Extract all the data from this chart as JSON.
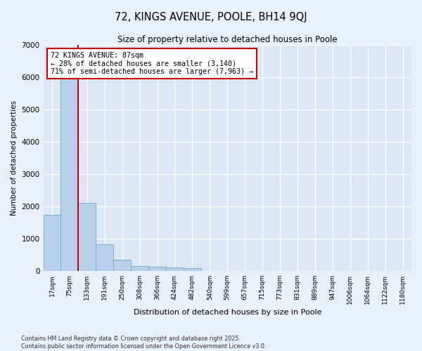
{
  "title_line1": "72, KINGS AVENUE, POOLE, BH14 9QJ",
  "title_line2": "Size of property relative to detached houses in Poole",
  "xlabel": "Distribution of detached houses by size in Poole",
  "ylabel": "Number of detached properties",
  "categories": [
    "17sqm",
    "75sqm",
    "133sqm",
    "191sqm",
    "250sqm",
    "308sqm",
    "366sqm",
    "424sqm",
    "482sqm",
    "540sqm",
    "599sqm",
    "657sqm",
    "715sqm",
    "773sqm",
    "831sqm",
    "889sqm",
    "947sqm",
    "1006sqm",
    "1064sqm",
    "1122sqm",
    "1180sqm"
  ],
  "values": [
    1750,
    6050,
    2100,
    830,
    350,
    160,
    130,
    110,
    90,
    0,
    0,
    0,
    0,
    0,
    0,
    0,
    0,
    0,
    0,
    0,
    0
  ],
  "bar_color": "#b8d0ea",
  "bar_edge_color": "#7aafd4",
  "red_line_x": 1.5,
  "annotation_line1": "72 KINGS AVENUE: 87sqm",
  "annotation_line2": "← 28% of detached houses are smaller (3,140)",
  "annotation_line3": "71% of semi-detached houses are larger (7,963) →",
  "red_line_color": "#cc0000",
  "annotation_box_color": "#cc0000",
  "plot_bg_color": "#dce6f5",
  "fig_bg_color": "#e8f0f8",
  "grid_color": "#ffffff",
  "ylim": [
    0,
    7000
  ],
  "yticks": [
    0,
    1000,
    2000,
    3000,
    4000,
    5000,
    6000,
    7000
  ],
  "footer_line1": "Contains HM Land Registry data © Crown copyright and database right 2025.",
  "footer_line2": "Contains public sector information licensed under the Open Government Licence v3.0."
}
